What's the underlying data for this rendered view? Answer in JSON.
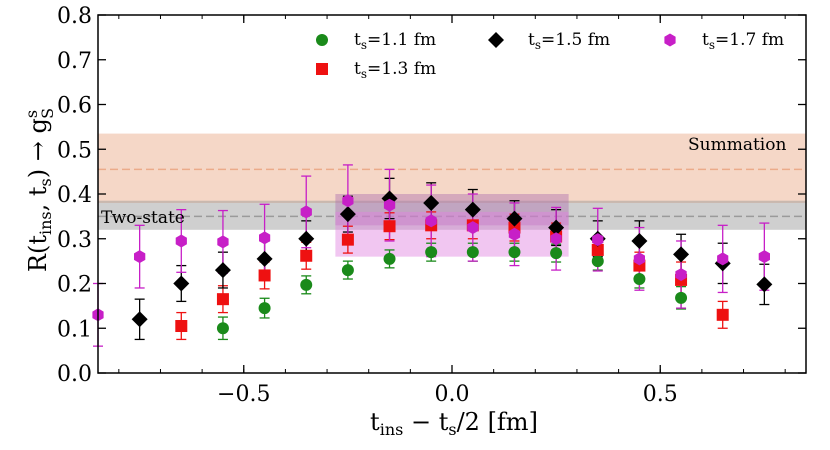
{
  "chart_data": {
    "type": "scatter",
    "title": "",
    "xlabel": "t_ins − t_s/2 [fm]",
    "ylabel": "R(t_ins, t_s) → g_S^s",
    "xlim": [
      -0.85,
      0.85
    ],
    "ylim": [
      0.0,
      0.8
    ],
    "x_ticks": [
      -0.5,
      0.0,
      0.5
    ],
    "x_tick_labels": [
      "−0.5",
      "0.0",
      "0.5"
    ],
    "y_ticks": [
      0.0,
      0.1,
      0.2,
      0.3,
      0.4,
      0.5,
      0.6,
      0.7,
      0.8
    ],
    "y_tick_labels": [
      "0.0",
      "0.1",
      "0.2",
      "0.3",
      "0.4",
      "0.5",
      "0.6",
      "0.7",
      "0.8"
    ],
    "bands": [
      {
        "name": "Summation",
        "label": "Summation",
        "center": 0.455,
        "lower": 0.38,
        "upper": 0.535,
        "color": "#e8a07a"
      },
      {
        "name": "Two-state",
        "label": "Two-state",
        "center": 0.35,
        "lower": 0.32,
        "upper": 0.385,
        "color": "#8c8c8c"
      }
    ],
    "boxes": [
      {
        "name": "t_s=1.5 fm window",
        "x_range": [
          -0.28,
          0.28
        ],
        "lower": 0.33,
        "upper": 0.4,
        "color": "#b070b0"
      },
      {
        "name": "t_s=1.7 fm window",
        "x_range": [
          -0.28,
          0.28
        ],
        "lower": 0.26,
        "upper": 0.36,
        "color": "#e080e0"
      }
    ],
    "series": [
      {
        "name": "t_s=1.1 fm",
        "legend_main": "t",
        "legend_sub": "s",
        "legend_rest": "=1.1 fm",
        "marker": "circle",
        "color": "#1a8a1a",
        "x": [
          -0.55,
          -0.45,
          -0.35,
          -0.25,
          -0.15,
          -0.05,
          0.05,
          0.15,
          0.25,
          0.35,
          0.45,
          0.55
        ],
        "y": [
          0.1,
          0.145,
          0.197,
          0.23,
          0.255,
          0.27,
          0.27,
          0.27,
          0.268,
          0.25,
          0.21,
          0.168
        ],
        "err": [
          0.025,
          0.022,
          0.02,
          0.02,
          0.02,
          0.02,
          0.02,
          0.02,
          0.02,
          0.02,
          0.02,
          0.025
        ]
      },
      {
        "name": "t_s=1.3 fm",
        "legend_main": "t",
        "legend_sub": "s",
        "legend_rest": "=1.3 fm",
        "marker": "square",
        "color": "#ee1111",
        "x": [
          -0.65,
          -0.55,
          -0.45,
          -0.35,
          -0.25,
          -0.15,
          -0.05,
          0.05,
          0.15,
          0.25,
          0.35,
          0.45,
          0.55,
          0.65
        ],
        "y": [
          0.105,
          0.165,
          0.218,
          0.262,
          0.298,
          0.328,
          0.33,
          0.33,
          0.325,
          0.305,
          0.275,
          0.24,
          0.208,
          0.13
        ],
        "err": [
          0.03,
          0.03,
          0.03,
          0.03,
          0.03,
          0.03,
          0.03,
          0.03,
          0.03,
          0.03,
          0.03,
          0.03,
          0.04,
          0.03
        ]
      },
      {
        "name": "t_s=1.5 fm",
        "legend_main": "t",
        "legend_sub": "s",
        "legend_rest": "=1.5 fm",
        "marker": "diamond",
        "color": "#000000",
        "x": [
          -0.75,
          -0.65,
          -0.55,
          -0.45,
          -0.35,
          -0.25,
          -0.15,
          -0.05,
          0.05,
          0.15,
          0.25,
          0.35,
          0.45,
          0.55,
          0.65,
          0.75
        ],
        "y": [
          0.12,
          0.2,
          0.23,
          0.255,
          0.3,
          0.355,
          0.39,
          0.38,
          0.365,
          0.345,
          0.325,
          0.3,
          0.295,
          0.265,
          0.245,
          0.198
        ],
        "err": [
          0.045,
          0.04,
          0.04,
          0.04,
          0.04,
          0.04,
          0.045,
          0.045,
          0.045,
          0.04,
          0.04,
          0.04,
          0.045,
          0.045,
          0.045,
          0.045
        ]
      },
      {
        "name": "t_s=1.7 fm",
        "legend_main": "t",
        "legend_sub": "s",
        "legend_rest": "=1.7 fm",
        "marker": "hexagon",
        "color": "#c71fc7",
        "x": [
          -0.85,
          -0.75,
          -0.65,
          -0.55,
          -0.45,
          -0.35,
          -0.25,
          -0.15,
          -0.05,
          0.05,
          0.15,
          0.25,
          0.35,
          0.45,
          0.55,
          0.65,
          0.75
        ],
        "y": [
          0.13,
          0.26,
          0.295,
          0.293,
          0.302,
          0.36,
          0.385,
          0.375,
          0.34,
          0.325,
          0.31,
          0.3,
          0.298,
          0.255,
          0.22,
          0.255,
          0.26
        ],
        "err": [
          0.07,
          0.07,
          0.07,
          0.07,
          0.075,
          0.08,
          0.08,
          0.08,
          0.08,
          0.075,
          0.07,
          0.07,
          0.07,
          0.07,
          0.075,
          0.075,
          0.075
        ]
      }
    ]
  }
}
